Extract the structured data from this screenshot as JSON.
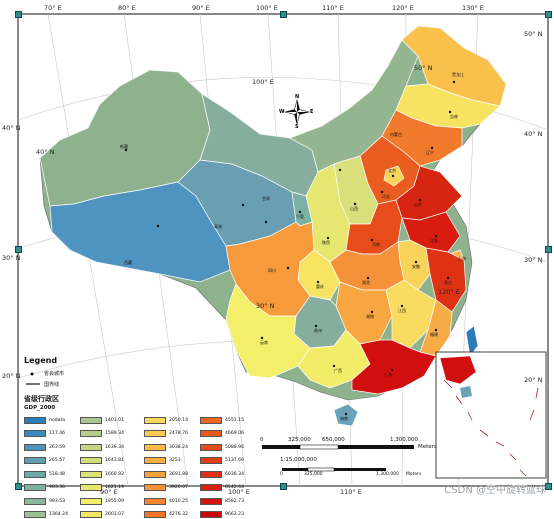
{
  "graticule": {
    "top": [
      "70° E",
      "80° E",
      "90° E",
      "100° E",
      "110° E",
      "120° E",
      "130° E"
    ],
    "bottom": [
      "90° E",
      "100° E",
      "110° E"
    ],
    "left": [
      "40° N",
      "30° N",
      "20° N"
    ],
    "right": [
      "50° N",
      "40° N",
      "30° N",
      "20° N"
    ],
    "inner": [
      "50° N",
      "40° N",
      "30° N",
      "100° E",
      "120° E"
    ]
  },
  "north_arrow": {
    "n": "N",
    "s": "S",
    "e": "E",
    "w": "W"
  },
  "provinces": [
    {
      "name": "新疆"
    },
    {
      "name": "西藏"
    },
    {
      "name": "青海"
    },
    {
      "name": "甘肃"
    },
    {
      "name": "内蒙古"
    },
    {
      "name": "黑龙江"
    },
    {
      "name": "吉林"
    },
    {
      "name": "辽宁"
    },
    {
      "name": "北京"
    },
    {
      "name": "河北"
    },
    {
      "name": "山西"
    },
    {
      "name": "陕西"
    },
    {
      "name": "宁夏"
    },
    {
      "name": "四川"
    },
    {
      "name": "重庆"
    },
    {
      "name": "云南"
    },
    {
      "name": "贵州"
    },
    {
      "name": "广西"
    },
    {
      "name": "广东"
    },
    {
      "name": "湖南"
    },
    {
      "name": "湖北"
    },
    {
      "name": "河南"
    },
    {
      "name": "山东"
    },
    {
      "name": "江苏"
    },
    {
      "name": "安徽"
    },
    {
      "name": "浙江"
    },
    {
      "name": "江西"
    },
    {
      "name": "福建"
    },
    {
      "name": "海南"
    },
    {
      "name": "上海"
    }
  ],
  "legend": {
    "title": "Legend",
    "city_label": "省会城市",
    "border_label": "国界线",
    "subtitle": "省级行政区",
    "field": "GDP_2000",
    "items": [
      {
        "label": "nodata",
        "color": "#2b7bb9"
      },
      {
        "label": "117.46",
        "color": "#3a8ac0"
      },
      {
        "label": "263.59",
        "color": "#4e96b8"
      },
      {
        "label": "265.57",
        "color": "#5ea0b0"
      },
      {
        "label": "518.48",
        "color": "#6ea9a8"
      },
      {
        "label": "983.36",
        "color": "#7fb1a1"
      },
      {
        "label": "993.53",
        "color": "#8eb89b"
      },
      {
        "label": "1364.24",
        "color": "#9cbf95"
      },
      {
        "label": "1401.01",
        "color": "#aac78f"
      },
      {
        "label": "1589.34",
        "color": "#b7ce88"
      },
      {
        "label": "1639.34",
        "color": "#c4d582"
      },
      {
        "label": "1643.81",
        "color": "#d1dc7b"
      },
      {
        "label": "1660.92",
        "color": "#dde275"
      },
      {
        "label": "1821.19",
        "color": "#e8e96f"
      },
      {
        "label": "1955.09",
        "color": "#f2ee69"
      },
      {
        "label": "2003.07",
        "color": "#f7e663"
      },
      {
        "label": "2050.14",
        "color": "#f9d95b"
      },
      {
        "label": "2478.76",
        "color": "#fbcb53"
      },
      {
        "label": "3038.24",
        "color": "#fcbc4b"
      },
      {
        "label": "3253",
        "color": "#fcae44"
      },
      {
        "label": "3691.88",
        "color": "#fba03d"
      },
      {
        "label": "3920.07",
        "color": "#f99236"
      },
      {
        "label": "4010.25",
        "color": "#f7842f"
      },
      {
        "label": "4276.32",
        "color": "#f47529"
      },
      {
        "label": "4551.15",
        "color": "#f06724"
      },
      {
        "label": "4669.06",
        "color": "#ec591f"
      },
      {
        "label": "5088.96",
        "color": "#e84b1b"
      },
      {
        "label": "5137.66",
        "color": "#e33d17"
      },
      {
        "label": "6036.34",
        "color": "#de3014"
      },
      {
        "label": "8542.44",
        "color": "#d82211"
      },
      {
        "label": "8582.73",
        "color": "#d2150f"
      },
      {
        "label": "9662.23",
        "color": "#cc080d"
      }
    ]
  },
  "scale": {
    "ticks": [
      "0",
      "325,000",
      "650,000",
      "1,300,000"
    ],
    "unit": "Meters",
    "ratio": "1:15,000,000",
    "ticks2": [
      "0",
      "325,000",
      "1,300,000"
    ],
    "unit2": "Meters"
  },
  "watermark": "CSDN @空中旋转篮球"
}
